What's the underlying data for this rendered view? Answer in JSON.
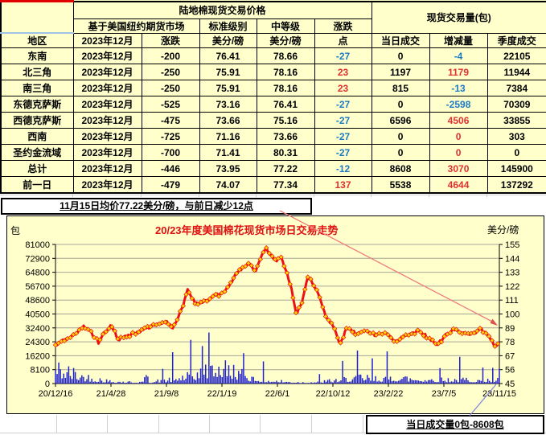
{
  "table": {
    "title": "陆地棉现货交易价格",
    "volume_title": "现货交易量(包)",
    "headers": {
      "region": "地区",
      "futures_market": "基于美国纽约期货市场",
      "standard_grade": "标准级别",
      "middling_grade": "中等级",
      "change_top": "涨跌",
      "point": "点",
      "unit": "美分/磅",
      "month": "2023年12月",
      "change": "涨跌",
      "daily_volume": "当日成交",
      "volume_change": "增减量",
      "season_volume": "季度成交"
    },
    "rows": [
      {
        "region": "东南",
        "month": "2023年12月",
        "change": "-200",
        "standard": "76.41",
        "middling": "78.66",
        "points": "-27",
        "points_color": "blue",
        "daily": "0",
        "delta": "-4",
        "delta_color": "blue",
        "season": "22105"
      },
      {
        "region": "北三角",
        "month": "2023年12月",
        "change": "-250",
        "standard": "75.91",
        "middling": "78.16",
        "points": "23",
        "points_color": "red",
        "daily": "1197",
        "delta": "1179",
        "delta_color": "red",
        "season": "11944"
      },
      {
        "region": "南三角",
        "month": "2023年12月",
        "change": "-250",
        "standard": "75.91",
        "middling": "78.16",
        "points": "23",
        "points_color": "red",
        "daily": "815",
        "delta": "-13",
        "delta_color": "blue",
        "season": "7384"
      },
      {
        "region": "东德克萨斯",
        "month": "2023年12月",
        "change": "-525",
        "standard": "73.16",
        "middling": "76.41",
        "points": "-27",
        "points_color": "blue",
        "daily": "0",
        "delta": "-2598",
        "delta_color": "blue",
        "season": "70309"
      },
      {
        "region": "西德克萨斯",
        "month": "2023年12月",
        "change": "-475",
        "standard": "73.66",
        "middling": "75.16",
        "points": "-27",
        "points_color": "blue",
        "daily": "6596",
        "delta": "4506",
        "delta_color": "red",
        "season": "33855"
      },
      {
        "region": "西南",
        "month": "2023年12月",
        "change": "-725",
        "standard": "71.16",
        "middling": "73.66",
        "points": "-27",
        "points_color": "blue",
        "daily": "0",
        "delta": "0",
        "delta_color": "red",
        "season": "303"
      },
      {
        "region": "圣约金流域",
        "month": "2023年12月",
        "change": "-700",
        "standard": "71.41",
        "middling": "80.31",
        "points": "-27",
        "points_color": "blue",
        "daily": "0",
        "delta": "0",
        "delta_color": "red",
        "season": "0"
      },
      {
        "region": "总计",
        "month": "2023年12月",
        "change": "-446",
        "standard": "73.95",
        "middling": "77.22",
        "points": "-12",
        "points_color": "blue",
        "daily": "8608",
        "delta": "3070",
        "delta_color": "red",
        "season": "145900"
      },
      {
        "region": "前一日",
        "month": "2023年12月",
        "change": "-479",
        "standard": "74.07",
        "middling": "77.34",
        "points": "137",
        "points_color": "red",
        "daily": "5538",
        "delta": "4644",
        "delta_color": "red",
        "season": "137292"
      }
    ]
  },
  "note": "11月15日均价77.22美分/磅，与前日减少12点",
  "volume_note": "当日成交量0包-8608包",
  "chart_data": {
    "type": "combo",
    "title": "20/23年度美国棉花现货市场日交易走势",
    "grid": true,
    "seed": 42,
    "left_axis": {
      "title": "包",
      "min": 0,
      "max": 81000,
      "ticks": [
        81000,
        72900,
        64800,
        56700,
        48600,
        40500,
        32400,
        24300,
        16200,
        8100,
        0
      ]
    },
    "right_axis": {
      "title": "美分/磅",
      "min": 45,
      "max": 155,
      "ticks": [
        155,
        144,
        133,
        122,
        111,
        100,
        89,
        78,
        67,
        56,
        45
      ]
    },
    "x_axis": {
      "ticks": [
        "20/12/16",
        "21/4/28",
        "21/9/8",
        "22/1/19",
        "22/6/1",
        "22/10/12",
        "23/2/22",
        "23/7/5",
        "23/11/15"
      ]
    },
    "bars": {
      "type": "bar",
      "axis": "left",
      "color": "#2222cc",
      "samples": 270,
      "final_day_value": 8608,
      "envelope_points": [
        [
          0.0,
          12000,
          45000
        ],
        [
          0.03,
          9000,
          35000
        ],
        [
          0.07,
          5000,
          25000
        ],
        [
          0.12,
          2000,
          9000
        ],
        [
          0.17,
          1200,
          5000
        ],
        [
          0.22,
          1500,
          7000
        ],
        [
          0.27,
          4000,
          20000
        ],
        [
          0.32,
          8000,
          30000
        ],
        [
          0.36,
          14000,
          48000
        ],
        [
          0.4,
          10000,
          35000
        ],
        [
          0.44,
          5000,
          20000
        ],
        [
          0.48,
          2500,
          10000
        ],
        [
          0.52,
          1500,
          6000
        ],
        [
          0.56,
          1000,
          4000
        ],
        [
          0.6,
          1500,
          6000
        ],
        [
          0.64,
          3000,
          12000
        ],
        [
          0.68,
          5000,
          20000
        ],
        [
          0.72,
          4000,
          16000
        ],
        [
          0.76,
          5000,
          20000
        ],
        [
          0.8,
          4000,
          15000
        ],
        [
          0.84,
          3500,
          23000
        ],
        [
          0.88,
          3000,
          12000
        ],
        [
          0.92,
          3500,
          18000
        ],
        [
          0.96,
          2500,
          10000
        ],
        [
          1.0,
          3000,
          8608
        ]
      ]
    },
    "line": {
      "type": "line",
      "axis": "right",
      "color": "#ee1111",
      "marker": "diamond",
      "marker_color": "#ffd200",
      "samples": 300,
      "end_value": 77.22,
      "points": [
        [
          0.0,
          75
        ],
        [
          0.02,
          79
        ],
        [
          0.045,
          84
        ],
        [
          0.063,
          90
        ],
        [
          0.08,
          86
        ],
        [
          0.097,
          78
        ],
        [
          0.112,
          86
        ],
        [
          0.125,
          91
        ],
        [
          0.143,
          80
        ],
        [
          0.18,
          85
        ],
        [
          0.22,
          91
        ],
        [
          0.25,
          94
        ],
        [
          0.265,
          89
        ],
        [
          0.285,
          104
        ],
        [
          0.298,
          120
        ],
        [
          0.315,
          108
        ],
        [
          0.337,
          110
        ],
        [
          0.36,
          114
        ],
        [
          0.38,
          117
        ],
        [
          0.41,
          133
        ],
        [
          0.437,
          140
        ],
        [
          0.45,
          133
        ],
        [
          0.473,
          153
        ],
        [
          0.485,
          147
        ],
        [
          0.496,
          142
        ],
        [
          0.509,
          145
        ],
        [
          0.53,
          122
        ],
        [
          0.542,
          100
        ],
        [
          0.555,
          108
        ],
        [
          0.569,
          130
        ],
        [
          0.585,
          121
        ],
        [
          0.596,
          112
        ],
        [
          0.608,
          99
        ],
        [
          0.626,
          91
        ],
        [
          0.641,
          76
        ],
        [
          0.657,
          89
        ],
        [
          0.68,
          84
        ],
        [
          0.7,
          87
        ],
        [
          0.72,
          83
        ],
        [
          0.74,
          86
        ],
        [
          0.767,
          78
        ],
        [
          0.79,
          84
        ],
        [
          0.819,
          86
        ],
        [
          0.84,
          81
        ],
        [
          0.861,
          76
        ],
        [
          0.88,
          83
        ],
        [
          0.897,
          88
        ],
        [
          0.92,
          85
        ],
        [
          0.94,
          84
        ],
        [
          0.957,
          88
        ],
        [
          0.975,
          83
        ],
        [
          0.99,
          75
        ],
        [
          1.0,
          77.2
        ]
      ]
    },
    "annotations": {
      "arrow_color": "#ef7e7e",
      "arrow_head_color": "#e05050",
      "callout_color": "#8888dd"
    }
  }
}
